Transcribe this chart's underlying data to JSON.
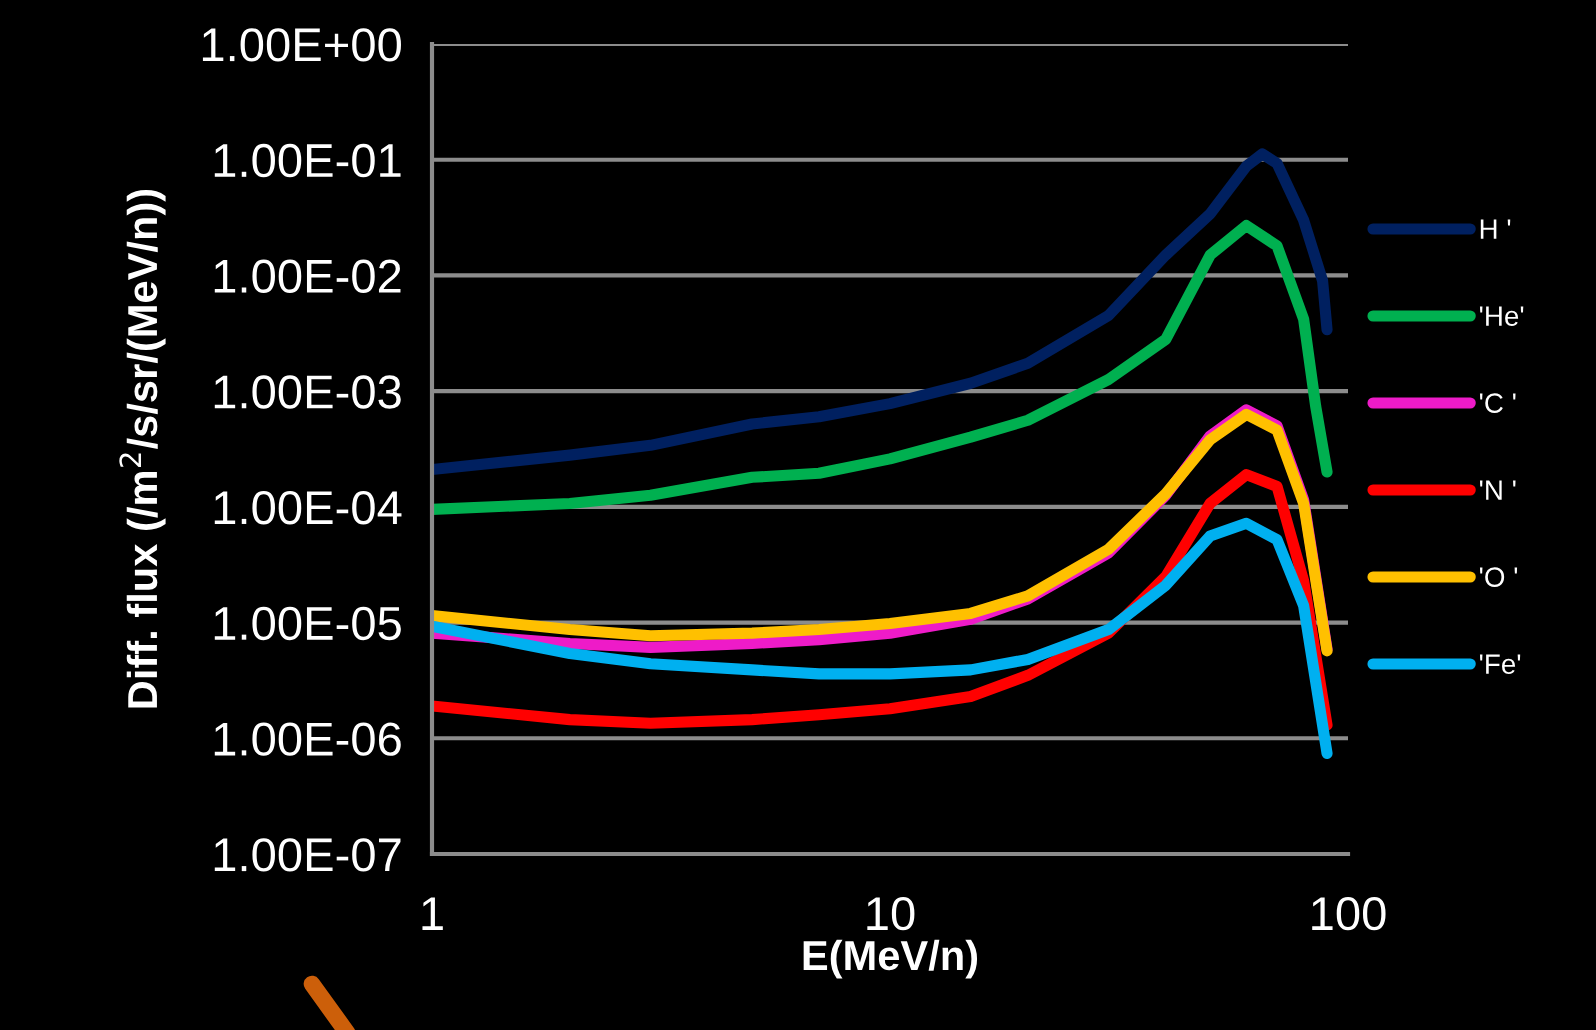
{
  "chart_data": {
    "type": "line",
    "xlabel": "E(MeV/n)",
    "ylabel": "Diff. flux (/m$^{2}$/s/sr/(MeV/n))",
    "x": [
      1,
      2,
      3,
      5,
      7,
      10,
      15,
      20,
      30,
      40,
      50,
      60,
      70,
      80,
      90
    ],
    "series": [
      {
        "name": "H '",
        "color": "#002060",
        "x": [
          1,
          2,
          3,
          5,
          7,
          10,
          15,
          20,
          30,
          40,
          50,
          60,
          65,
          70,
          80,
          88,
          90
        ],
        "values": [
          0.00021,
          0.00028,
          0.00034,
          0.00052,
          0.0006,
          0.00078,
          0.00117,
          0.00174,
          0.0045,
          0.015,
          0.034,
          0.088,
          0.112,
          0.093,
          0.03,
          0.009,
          0.0034
        ]
      },
      {
        "name": "'He'",
        "color": "#00b050",
        "x": [
          1,
          2,
          3,
          5,
          7,
          10,
          15,
          20,
          30,
          40,
          50,
          60,
          70,
          80,
          85,
          90
        ],
        "values": [
          9.5e-05,
          0.000107,
          0.000126,
          0.00018,
          0.000195,
          0.00026,
          0.0004,
          0.00056,
          0.00126,
          0.0028,
          0.015,
          0.027,
          0.018,
          0.0042,
          0.00074,
          0.0002
        ]
      },
      {
        "name": "'C '",
        "color": "#ee1bc8",
        "values": [
          8.1e-06,
          6.6e-06,
          6.1e-06,
          6.6e-06,
          7.1e-06,
          8.1e-06,
          1.07e-05,
          1.6e-05,
          4e-05,
          0.000126,
          0.00041,
          0.00069,
          0.0005,
          0.000115,
          5.9e-06
        ]
      },
      {
        "name": "'N '",
        "color": "#ff0000",
        "values": [
          1.9e-06,
          1.45e-06,
          1.35e-06,
          1.45e-06,
          1.6e-06,
          1.8e-06,
          2.3e-06,
          3.5e-06,
          8.1e-06,
          2.5e-05,
          0.000107,
          0.00019,
          0.00015,
          2.3e-05,
          1.3e-06
        ]
      },
      {
        "name": "'O '",
        "color": "#ffc000",
        "values": [
          1.15e-05,
          8.7e-06,
          7.7e-06,
          8.1e-06,
          8.7e-06,
          9.8e-06,
          1.2e-05,
          1.7e-05,
          4.3e-05,
          0.00013,
          0.00038,
          0.00063,
          0.00046,
          0.000107,
          5.7e-06
        ]
      },
      {
        "name": "'Fe'",
        "color": "#00b0f0",
        "values": [
          9.3e-06,
          5.4e-06,
          4.4e-06,
          3.9e-06,
          3.6e-06,
          3.6e-06,
          3.9e-06,
          4.8e-06,
          8.7e-06,
          2.1e-05,
          5.6e-05,
          7.2e-05,
          5.2e-05,
          1.4e-05,
          7.4e-07
        ]
      }
    ],
    "log": "xy",
    "xlim": [
      1,
      100
    ],
    "xticks": [
      1,
      10,
      100
    ],
    "ylim": [
      1e-07,
      1
    ],
    "yticks": [
      {
        "value": 1,
        "label": "1.00E+00"
      },
      {
        "value": 0.1,
        "label": "1.00E-01"
      },
      {
        "value": 0.01,
        "label": "1.00E-02"
      },
      {
        "value": 0.001,
        "label": "1.00E-03"
      },
      {
        "value": 0.0001,
        "label": "1.00E-04"
      },
      {
        "value": 1e-05,
        "label": "1.00E-05"
      },
      {
        "value": 1e-06,
        "label": "1.00E-06"
      },
      {
        "value": 1e-07,
        "label": "1.00E-07"
      }
    ],
    "grid": "y",
    "legend": "right",
    "marker": "none",
    "line_style": "solid"
  }
}
